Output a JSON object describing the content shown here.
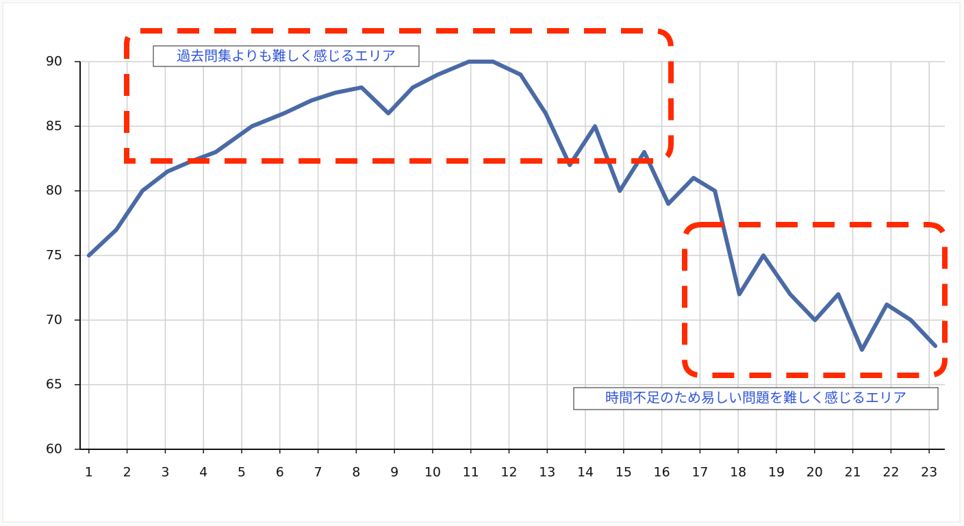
{
  "chart_data": {
    "type": "line",
    "x": [
      1,
      1.72,
      2.4,
      3.06,
      3.69,
      4.32,
      5.27,
      6.11,
      6.83,
      7.46,
      8.14,
      8.84,
      9.48,
      10.14,
      10.95,
      11.58,
      12.3,
      12.96,
      13.59,
      14.25,
      14.9,
      15.54,
      16.17,
      16.83,
      17.39,
      18.03,
      18.66,
      19.36,
      20.01,
      20.62,
      21.24,
      21.89,
      22.52,
      23.16
    ],
    "series": [
      {
        "color": "#4a6aa5",
        "values": [
          75,
          77,
          80,
          81.5,
          82.3,
          83,
          85,
          86,
          87,
          87.6,
          88,
          86,
          88,
          89,
          90,
          90,
          89,
          86,
          82,
          85,
          80,
          83,
          79,
          81,
          80,
          72,
          75,
          72,
          70,
          72,
          67.7,
          71.2,
          70,
          68
        ]
      }
    ],
    "xlim": [
      0.77,
      23.41
    ],
    "xticks": [
      1,
      2,
      3,
      4,
      5,
      6,
      7,
      8,
      9,
      10,
      11,
      12,
      13,
      14,
      15,
      16,
      17,
      18,
      19,
      20,
      21,
      22,
      23
    ],
    "ylim": [
      60,
      90
    ],
    "yticks": [
      60,
      65,
      70,
      75,
      80,
      85,
      90
    ],
    "grid": true,
    "annotations": [
      "過去問集よりも難しく感じるエリア",
      "時間不足のため易しい問題を難しく感じるエリア"
    ]
  }
}
